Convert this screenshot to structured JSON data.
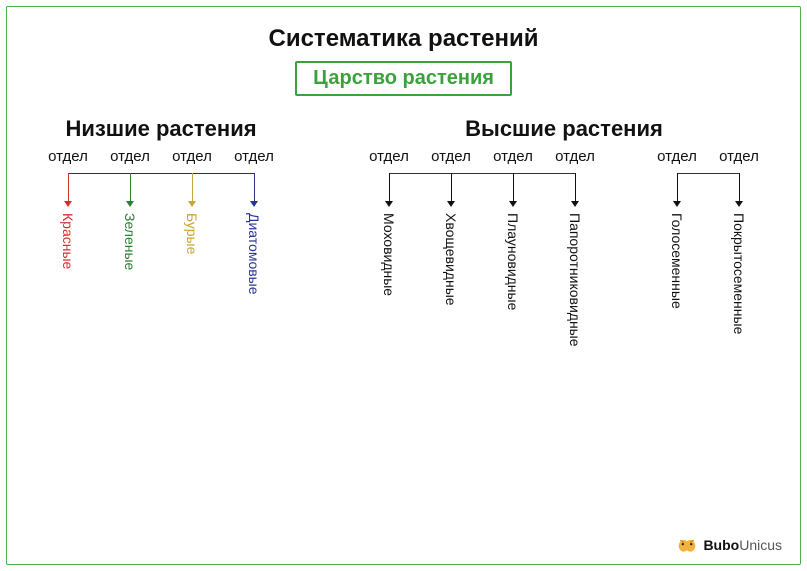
{
  "title": {
    "text": "Систематика растений",
    "fontsize": 24,
    "color": "#111111"
  },
  "kingdom": {
    "text": "Царство растения",
    "fontsize": 20,
    "border_color": "#3ba23b",
    "text_color": "#3ba23b"
  },
  "group_label_fontsize": 22,
  "otdel_label": "отдел",
  "otdel_fontsize": 15,
  "vertical_fontsize": 14,
  "line_color": "#333333",
  "background_color": "#ffffff",
  "frame_border_color": "#4caf50",
  "groups": {
    "lower": {
      "title": "Низшие растения",
      "subgroups": [
        {
          "items": [
            {
              "label": "Красные",
              "color": "#d32f2f"
            },
            {
              "label": "Зеленые",
              "color": "#2e7d32"
            },
            {
              "label": "Бурые",
              "color": "#c9a43a"
            },
            {
              "label": "Диатомовые",
              "color": "#283593"
            }
          ]
        }
      ]
    },
    "higher": {
      "title": "Высшие растения",
      "subgroups": [
        {
          "items": [
            {
              "label": "Моховидные",
              "color": "#111111"
            },
            {
              "label": "Хвощевидные",
              "color": "#111111"
            },
            {
              "label": "Плауновидные",
              "color": "#111111"
            },
            {
              "label": "Папоротниковидные",
              "color": "#111111"
            }
          ]
        },
        {
          "items": [
            {
              "label": "Голосеменные",
              "color": "#111111"
            },
            {
              "label": "Покрытосеменные",
              "color": "#111111"
            }
          ]
        }
      ]
    }
  },
  "brand": {
    "bold": "Bubo",
    "light": "Unicus",
    "icon_color": "#f4b23d"
  }
}
